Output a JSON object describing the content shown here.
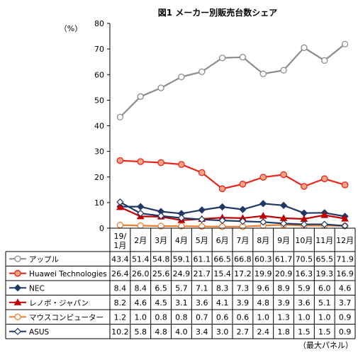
{
  "chart_data": {
    "type": "line",
    "title": "図1 メーカー別販売台数シェア",
    "ylabel": "（%）",
    "note": "（最大パネル）",
    "ylim": [
      0,
      80
    ],
    "yticks": [
      0,
      10,
      20,
      30,
      40,
      50,
      60,
      70,
      80
    ],
    "grid": false,
    "legend": "table-below",
    "categories": [
      "19/\n1月",
      "2月",
      "3月",
      "4月",
      "5月",
      "6月",
      "7月",
      "8月",
      "9月",
      "10月",
      "11月",
      "12月"
    ],
    "series": [
      {
        "name": "アップル",
        "color": "#8c8c8c",
        "marker": "circle-open",
        "values": [
          43.4,
          51.4,
          54.8,
          59.1,
          61.1,
          66.5,
          66.8,
          60.3,
          61.7,
          70.5,
          65.5,
          71.9
        ]
      },
      {
        "name": "Huawei Technologies",
        "color": "#e8251b",
        "marker": "circle-filled",
        "values": [
          26.4,
          26.0,
          25.6,
          24.9,
          21.7,
          15.4,
          17.2,
          19.9,
          20.9,
          16.3,
          19.3,
          16.9
        ]
      },
      {
        "name": "NEC",
        "color": "#1f3864",
        "marker": "diamond-filled",
        "values": [
          8.4,
          8.4,
          6.5,
          5.7,
          7.1,
          8.3,
          7.3,
          9.6,
          8.9,
          5.9,
          6.0,
          4.6
        ]
      },
      {
        "name": "レノボ・ジャパン",
        "color": "#c00000",
        "marker": "triangle-filled",
        "values": [
          8.2,
          4.6,
          4.5,
          3.1,
          3.6,
          4.1,
          3.9,
          4.8,
          3.9,
          3.6,
          5.1,
          3.7
        ]
      },
      {
        "name": "マウスコンピューター",
        "color": "#ed7d31",
        "marker": "circle-open",
        "values": [
          1.2,
          1.0,
          0.8,
          0.8,
          0.7,
          0.6,
          0.6,
          1.0,
          1.3,
          1.0,
          1.0,
          0.9
        ]
      },
      {
        "name": "ASUS",
        "color": "#1f3864",
        "marker": "diamond-open",
        "values": [
          10.2,
          5.8,
          4.8,
          4.0,
          3.4,
          3.0,
          2.7,
          2.4,
          1.8,
          1.5,
          1.5,
          0.9
        ]
      }
    ]
  }
}
